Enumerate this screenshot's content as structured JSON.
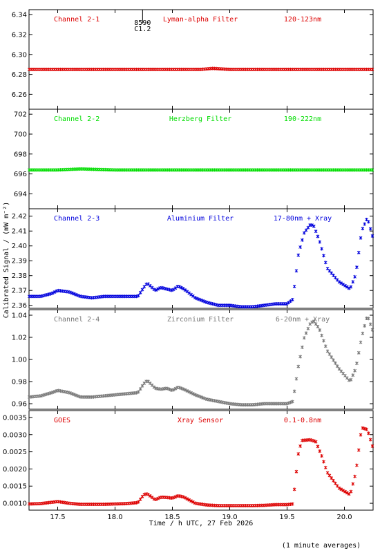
{
  "x_axis": {
    "label": "Time / h UTC, 27 Feb 2026",
    "ticks": [
      "17.5",
      "18.0",
      "18.5",
      "19.0",
      "19.5",
      "20.0"
    ],
    "range": [
      17.25,
      20.25
    ]
  },
  "y_label": "Calibrated Signal / (mW m⁻²)",
  "footnote": "(1 minute averages)",
  "flare_marker": {
    "time": 18.24,
    "id": "8590",
    "class": "C1.2"
  },
  "chart_data": [
    {
      "type": "scatter",
      "channel": "Channel 2-1",
      "filter": "Lyman-alpha Filter",
      "band": "120-123nm",
      "color": "#dd0000",
      "ylim": [
        6.245,
        6.345
      ],
      "yticks": [
        "6.26",
        "6.28",
        "6.30",
        "6.32",
        "6.34"
      ],
      "x": [
        17.25,
        17.5,
        17.75,
        18.0,
        18.25,
        18.5,
        18.75,
        18.85,
        19.0,
        19.25,
        19.5,
        19.75,
        20.0,
        20.25
      ],
      "y": [
        6.285,
        6.285,
        6.285,
        6.285,
        6.285,
        6.285,
        6.285,
        6.286,
        6.285,
        6.285,
        6.285,
        6.285,
        6.285,
        6.285
      ]
    },
    {
      "type": "scatter",
      "channel": "Channel 2-2",
      "filter": "Herzberg Filter",
      "band": "190-222nm",
      "color": "#00dd00",
      "ylim": [
        692.5,
        702.5
      ],
      "yticks": [
        "694",
        "696",
        "698",
        "700",
        "702"
      ],
      "x": [
        17.25,
        17.5,
        17.7,
        18.0,
        18.25,
        18.5,
        18.75,
        19.0,
        19.25,
        19.5,
        19.75,
        20.0,
        20.25
      ],
      "y": [
        696.4,
        696.4,
        696.5,
        696.4,
        696.4,
        696.4,
        696.4,
        696.4,
        696.4,
        696.4,
        696.4,
        696.4,
        696.4
      ]
    },
    {
      "type": "scatter",
      "channel": "Channel 2-3",
      "filter": "Aluminium Filter",
      "band": "17-80nm + Xray",
      "color": "#0000dd",
      "ylim": [
        2.358,
        2.425
      ],
      "yticks": [
        "2.36",
        "2.37",
        "2.38",
        "2.39",
        "2.40",
        "2.41",
        "2.42"
      ],
      "x": [
        17.25,
        17.35,
        17.45,
        17.5,
        17.6,
        17.7,
        17.8,
        17.9,
        18.0,
        18.1,
        18.2,
        18.25,
        18.28,
        18.35,
        18.4,
        18.45,
        18.5,
        18.55,
        18.6,
        18.7,
        18.8,
        18.9,
        19.0,
        19.1,
        19.2,
        19.3,
        19.4,
        19.5,
        19.55,
        19.6,
        19.65,
        19.7,
        19.73,
        19.78,
        19.85,
        19.95,
        20.05,
        20.1,
        20.15,
        20.2,
        20.25
      ],
      "y": [
        2.366,
        2.366,
        2.368,
        2.37,
        2.369,
        2.366,
        2.365,
        2.366,
        2.366,
        2.366,
        2.366,
        2.372,
        2.375,
        2.37,
        2.372,
        2.371,
        2.37,
        2.373,
        2.371,
        2.365,
        2.362,
        2.36,
        2.36,
        2.359,
        2.359,
        2.36,
        2.361,
        2.361,
        2.364,
        2.395,
        2.409,
        2.414,
        2.414,
        2.404,
        2.385,
        2.376,
        2.371,
        2.381,
        2.41,
        2.419,
        2.405
      ]
    },
    {
      "type": "scatter",
      "channel": "Channel 2-4",
      "filter": "Zirconium Filter",
      "band": "6-20nm + Xray",
      "color": "#777777",
      "ylim": [
        0.955,
        1.045
      ],
      "yticks": [
        "0.96",
        "0.98",
        "1.00",
        "1.02",
        "1.04"
      ],
      "x": [
        17.25,
        17.35,
        17.45,
        17.5,
        17.6,
        17.7,
        17.8,
        17.9,
        18.0,
        18.1,
        18.2,
        18.25,
        18.28,
        18.35,
        18.4,
        18.45,
        18.5,
        18.55,
        18.6,
        18.7,
        18.8,
        18.9,
        19.0,
        19.1,
        19.2,
        19.3,
        19.4,
        19.5,
        19.55,
        19.6,
        19.65,
        19.7,
        19.73,
        19.78,
        19.85,
        19.95,
        20.05,
        20.1,
        20.15,
        20.2,
        20.25
      ],
      "y": [
        0.966,
        0.967,
        0.97,
        0.972,
        0.97,
        0.966,
        0.966,
        0.967,
        0.968,
        0.969,
        0.97,
        0.978,
        0.981,
        0.974,
        0.973,
        0.974,
        0.972,
        0.975,
        0.973,
        0.968,
        0.964,
        0.962,
        0.96,
        0.959,
        0.959,
        0.96,
        0.96,
        0.96,
        0.962,
        0.995,
        1.02,
        1.032,
        1.035,
        1.028,
        1.008,
        0.992,
        0.98,
        0.992,
        1.02,
        1.04,
        1.025
      ]
    },
    {
      "type": "scatter",
      "channel": "GOES",
      "filter": "Xray Sensor",
      "band": "0.1-0.8nm",
      "color": "#dd0000",
      "ylim": [
        0.0008,
        0.0037
      ],
      "yticks": [
        "0.0010",
        "0.0015",
        "0.0020",
        "0.0025",
        "0.0030",
        "0.0035"
      ],
      "x": [
        17.25,
        17.35,
        17.45,
        17.5,
        17.6,
        17.7,
        17.8,
        17.9,
        18.0,
        18.1,
        18.2,
        18.25,
        18.28,
        18.35,
        18.4,
        18.45,
        18.5,
        18.55,
        18.6,
        18.7,
        18.8,
        18.9,
        19.0,
        19.1,
        19.2,
        19.3,
        19.4,
        19.5,
        19.55,
        19.6,
        19.63,
        19.7,
        19.75,
        19.8,
        19.85,
        19.95,
        20.05,
        20.1,
        20.15,
        20.2,
        20.25
      ],
      "y": [
        0.00098,
        0.00099,
        0.00103,
        0.00105,
        0.001,
        0.00097,
        0.00097,
        0.00097,
        0.00098,
        0.00099,
        0.00102,
        0.00125,
        0.00128,
        0.0011,
        0.00118,
        0.00117,
        0.00115,
        0.00122,
        0.00118,
        0.001,
        0.00095,
        0.00093,
        0.00093,
        0.00093,
        0.00093,
        0.00094,
        0.00096,
        0.00096,
        0.00098,
        0.0025,
        0.00283,
        0.00285,
        0.0028,
        0.0024,
        0.0019,
        0.00145,
        0.00125,
        0.0019,
        0.0032,
        0.00315,
        0.0026
      ]
    }
  ]
}
